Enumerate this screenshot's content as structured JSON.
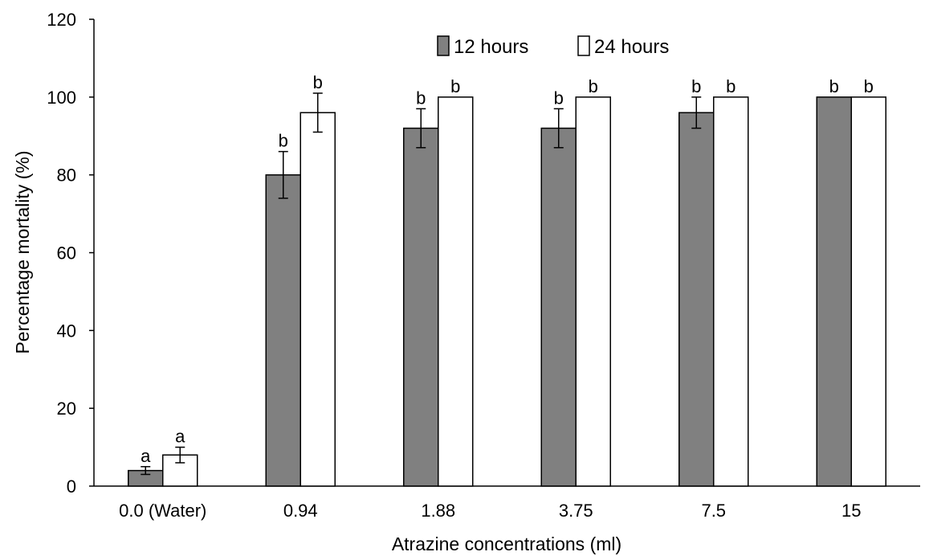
{
  "chart_data": {
    "type": "bar",
    "title": "",
    "xlabel": "Atrazine concentrations (ml)",
    "ylabel": "Percentage mortality (%)",
    "ylim": [
      0,
      120
    ],
    "yticks": [
      0,
      20,
      40,
      60,
      80,
      100,
      120
    ],
    "categories": [
      "0.0 (Water)",
      "0.94",
      "1.88",
      "3.75",
      "7.5",
      "15"
    ],
    "series": [
      {
        "name": "12 hours",
        "color": "#808080",
        "values": [
          4,
          80,
          92,
          92,
          96,
          100
        ],
        "error": [
          1,
          6,
          5,
          5,
          4,
          0
        ],
        "labels": [
          "a",
          "b",
          "b",
          "b",
          "b",
          "b"
        ]
      },
      {
        "name": "24 hours",
        "color": "#ffffff",
        "values": [
          8,
          96,
          100,
          100,
          100,
          100
        ],
        "error": [
          2,
          5,
          0,
          0,
          0,
          0
        ],
        "labels": [
          "a",
          "b",
          "b",
          "b",
          "b",
          "b"
        ]
      }
    ],
    "grid": false,
    "legend_position": "top-center"
  }
}
